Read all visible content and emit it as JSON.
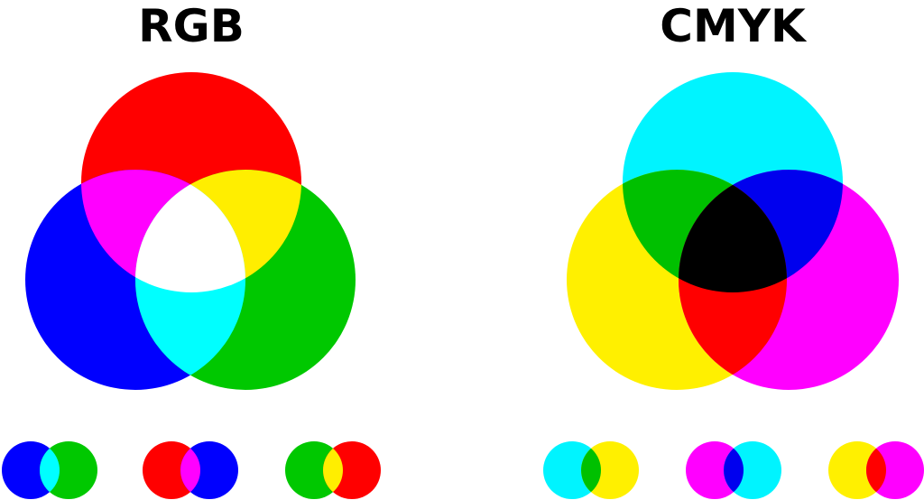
{
  "rgb": {
    "title": "RGB",
    "primaries": {
      "red": "#ff0000",
      "green": "#00c800",
      "blue": "#0000ff"
    },
    "mixes": {
      "red+blue": "#ff00ff",
      "red+green": "#ffee00",
      "blue+green": "#00ffff",
      "all": "#ffffff"
    },
    "pairs": [
      {
        "a": "#0000ff",
        "b": "#00c800",
        "mix": "#00ffff"
      },
      {
        "a": "#ff0000",
        "b": "#0000ff",
        "mix": "#ff00ff"
      },
      {
        "a": "#00c800",
        "b": "#ff0000",
        "mix": "#ffee00"
      }
    ]
  },
  "cmyk": {
    "title": "CMYK",
    "primaries": {
      "cyan": "#00f4ff",
      "yellow": "#fff000",
      "magenta": "#ff00ff"
    },
    "mixes": {
      "cyan+yellow": "#00c000",
      "cyan+magenta": "#0000ee",
      "yellow+magenta": "#ff0000",
      "all": "#000000"
    },
    "pairs": [
      {
        "a": "#00f4ff",
        "b": "#fff000",
        "mix": "#00c000"
      },
      {
        "a": "#ff00ff",
        "b": "#00f4ff",
        "mix": "#0000ee"
      },
      {
        "a": "#fff000",
        "b": "#ff00ff",
        "mix": "#ff0000"
      }
    ]
  }
}
